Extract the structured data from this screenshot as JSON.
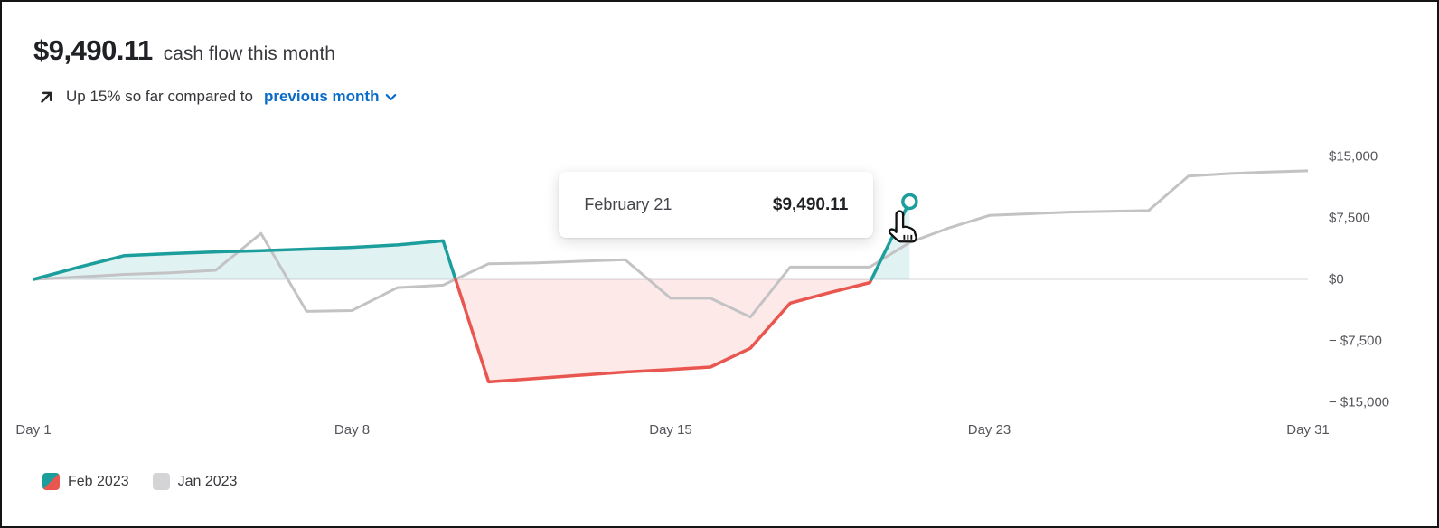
{
  "header": {
    "amount": "$9,490.11",
    "caption": "cash flow this month",
    "trend_text": "Up 15% so far compared to",
    "trend_link": "previous month"
  },
  "tooltip": {
    "date": "February 21",
    "value": "$9,490.11"
  },
  "legend": {
    "items": [
      {
        "label": "Feb 2023",
        "swatch": "split-teal-red"
      },
      {
        "label": "Jan 2023",
        "swatch": "gray"
      }
    ]
  },
  "colors": {
    "feb_positive": "#1b9e9c",
    "feb_negative": "#e9564f",
    "area_positive": "rgba(27,158,156,0.13)",
    "area_negative": "rgba(233,86,79,0.13)",
    "jan_line": "#c3c3c5",
    "jan_swatch": "#d4d4d6",
    "zero_line": "#e4e4e6",
    "link_blue": "#0b6cc8"
  },
  "chart_data": {
    "type": "line",
    "title": "Cash flow this month vs previous month",
    "x_axis": {
      "tick_labels": [
        "Day 1",
        "Day 8",
        "Day 15",
        "Day 23",
        "Day 31"
      ],
      "anchor_days": [
        1,
        8,
        15,
        23,
        31
      ]
    },
    "y_axis": {
      "tick_labels": [
        "$15,000",
        "$7,500",
        "$0",
        "− $7,500",
        "− $15,000"
      ],
      "tick_values": [
        15000,
        7500,
        0,
        -7500,
        -15000
      ],
      "ylim": [
        -17300,
        17300
      ]
    },
    "legend_position": "bottom-left",
    "grid": "zero-baseline-only",
    "series": [
      {
        "name": "Feb 2023",
        "style": "teal-above-zero-red-below-zero",
        "area_fill": true,
        "points": [
          [
            1,
            0
          ],
          [
            2,
            1500
          ],
          [
            3,
            2900
          ],
          [
            4,
            3150
          ],
          [
            5,
            3350
          ],
          [
            6,
            3500
          ],
          [
            7,
            3700
          ],
          [
            8,
            3900
          ],
          [
            9,
            4200
          ],
          [
            10,
            4700
          ],
          [
            11,
            -12500
          ],
          [
            12,
            -12100
          ],
          [
            13,
            -11700
          ],
          [
            14,
            -11300
          ],
          [
            15,
            -11000
          ],
          [
            16,
            -10700
          ],
          [
            17,
            -8400
          ],
          [
            18,
            -2900
          ],
          [
            19,
            -1600
          ],
          [
            20,
            -400
          ],
          [
            21,
            9490.11
          ]
        ]
      },
      {
        "name": "Jan 2023",
        "style": "gray",
        "area_fill": false,
        "points": [
          [
            1,
            0
          ],
          [
            2,
            300
          ],
          [
            3,
            600
          ],
          [
            4,
            800
          ],
          [
            5,
            1100
          ],
          [
            6,
            5600
          ],
          [
            7,
            -3900
          ],
          [
            8,
            -3800
          ],
          [
            9,
            -1000
          ],
          [
            10,
            -700
          ],
          [
            11,
            1900
          ],
          [
            12,
            2000
          ],
          [
            13,
            2200
          ],
          [
            14,
            2400
          ],
          [
            15,
            -2300
          ],
          [
            16,
            -2300
          ],
          [
            17,
            -4600
          ],
          [
            18,
            1500
          ],
          [
            19,
            1500
          ],
          [
            20,
            1500
          ],
          [
            21,
            4500
          ],
          [
            22,
            6300
          ],
          [
            23,
            7800
          ],
          [
            24,
            8000
          ],
          [
            25,
            8200
          ],
          [
            26,
            8300
          ],
          [
            27,
            8400
          ],
          [
            28,
            12600
          ],
          [
            29,
            12900
          ],
          [
            30,
            13100
          ],
          [
            31,
            13250
          ]
        ]
      }
    ],
    "highlight": {
      "series": "Feb 2023",
      "day": 21,
      "value": 9490.11
    }
  }
}
